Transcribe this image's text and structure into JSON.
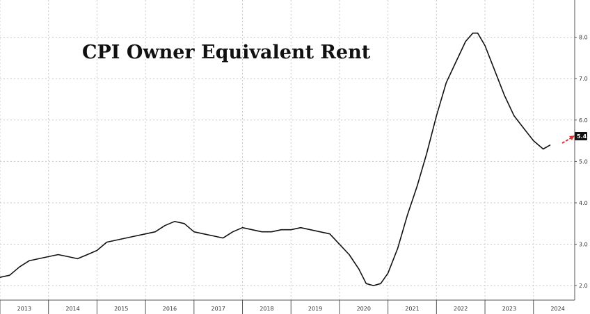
{
  "chart_data": {
    "type": "line",
    "title": "CPI Owner Equivalent Rent",
    "xlabel": "",
    "ylabel": "",
    "ylim": [
      1.65,
      8.9
    ],
    "yticks": [
      "2.0",
      "3.0",
      "4.0",
      "5.0",
      "6.0",
      "7.0",
      "8.0"
    ],
    "xlim": [
      2013.0,
      2024.85
    ],
    "xticks": [
      "2013",
      "2014",
      "2015",
      "2016",
      "2017",
      "2018",
      "2019",
      "2020",
      "2021",
      "2022",
      "2023",
      "2024"
    ],
    "grid": true,
    "last_value_label": "5.4",
    "series": [
      {
        "x": [
          2013.0,
          2013.2,
          2013.4,
          2013.6,
          2013.8,
          2014.0,
          2014.2,
          2014.4,
          2014.6,
          2014.8,
          2015.0,
          2015.2,
          2015.4,
          2015.6,
          2015.8,
          2016.0,
          2016.2,
          2016.4,
          2016.6,
          2016.8,
          2017.0,
          2017.2,
          2017.4,
          2017.6,
          2017.8,
          2018.0,
          2018.2,
          2018.4,
          2018.6,
          2018.8,
          2019.0,
          2019.2,
          2019.4,
          2019.6,
          2019.8,
          2020.0,
          2020.2,
          2020.4,
          2020.55,
          2020.7,
          2020.85,
          2021.0,
          2021.2,
          2021.4,
          2021.6,
          2021.8,
          2022.0,
          2022.2,
          2022.4,
          2022.6,
          2022.75,
          2022.85,
          2023.0,
          2023.2,
          2023.4,
          2023.6,
          2023.8,
          2024.0,
          2024.2,
          2024.35
        ],
        "values": [
          2.2,
          2.25,
          2.45,
          2.6,
          2.65,
          2.7,
          2.75,
          2.7,
          2.65,
          2.75,
          2.85,
          3.05,
          3.1,
          3.15,
          3.2,
          3.25,
          3.3,
          3.45,
          3.55,
          3.5,
          3.3,
          3.25,
          3.2,
          3.15,
          3.3,
          3.4,
          3.35,
          3.3,
          3.3,
          3.35,
          3.35,
          3.4,
          3.35,
          3.3,
          3.25,
          3.0,
          2.75,
          2.4,
          2.05,
          2.0,
          2.05,
          2.3,
          2.9,
          3.7,
          4.4,
          5.2,
          6.1,
          6.9,
          7.4,
          7.9,
          8.1,
          8.1,
          7.8,
          7.2,
          6.6,
          6.1,
          5.8,
          5.5,
          5.3,
          5.4
        ]
      }
    ]
  }
}
